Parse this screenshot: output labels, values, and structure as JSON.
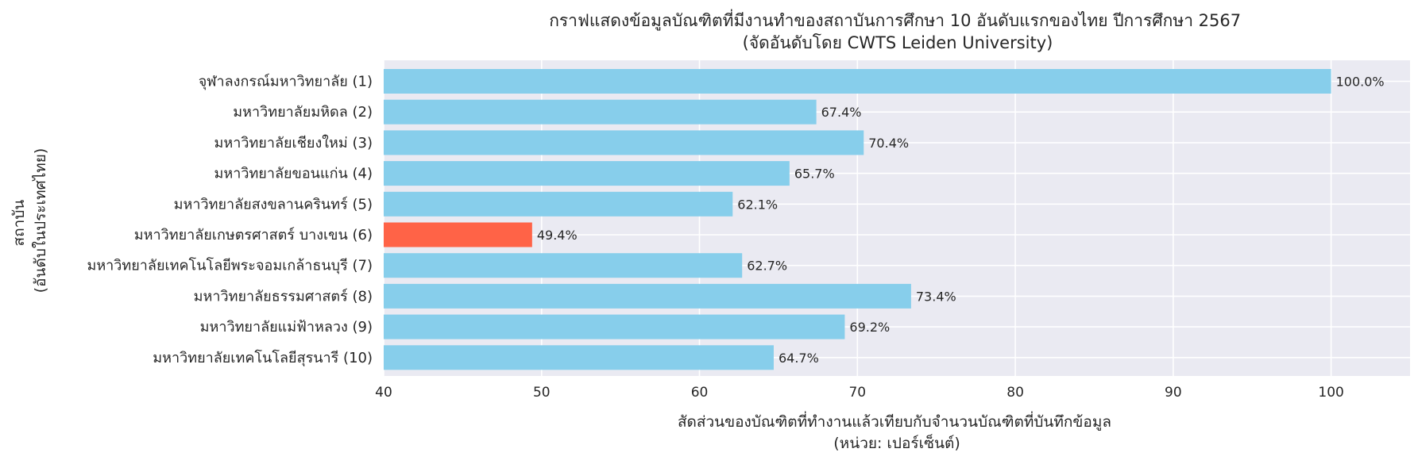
{
  "chart_data": {
    "type": "bar",
    "orientation": "horizontal",
    "title": [
      "กราฟแสดงข้อมูลบัณฑิตที่มีงานทำของสถาบันการศึกษา 10 อันดับแรกของไทย ปีการศึกษา 2567",
      "(จัดอันดับโดย CWTS Leiden University)"
    ],
    "xlabel": [
      "สัดส่วนของบัณฑิตที่ทำงานแล้วเทียบกับจำนวนบัณฑิตที่บันทึกข้อมูล",
      "(หน่วย: เปอร์เซ็นต์)"
    ],
    "ylabel": [
      "สถาบัน",
      "(อันดับในประเทศไทย)"
    ],
    "xlim": [
      40,
      105
    ],
    "xticks": [
      "40",
      "50",
      "60",
      "70",
      "80",
      "90",
      "100"
    ],
    "grid": true,
    "highlight_color": "#FF6347",
    "bar_color": "#87CEEB",
    "categories": [
      "จุฬาลงกรณ์มหาวิทยาลัย (1)",
      "มหาวิทยาลัยมหิดล (2)",
      "มหาวิทยาลัยเชียงใหม่ (3)",
      "มหาวิทยาลัยขอนแก่น (4)",
      "มหาวิทยาลัยสงขลานครินทร์ (5)",
      "มหาวิทยาลัยเกษตรศาสตร์ บางเขน (6)",
      "มหาวิทยาลัยเทคโนโลยีพระจอมเกล้าธนบุรี (7)",
      "มหาวิทยาลัยธรรมศาสตร์ (8)",
      "มหาวิทยาลัยแม่ฟ้าหลวง (9)",
      "มหาวิทยาลัยเทคโนโลยีสุรนารี (10)"
    ],
    "values": [
      100.0,
      67.4,
      70.4,
      65.7,
      62.1,
      49.4,
      62.7,
      73.4,
      69.2,
      64.7
    ],
    "data_labels": [
      "100.0%",
      "67.4%",
      "70.4%",
      "65.7%",
      "62.1%",
      "49.4%",
      "62.7%",
      "73.4%",
      "69.2%",
      "64.7%"
    ],
    "highlighted": [
      false,
      false,
      false,
      false,
      false,
      true,
      false,
      false,
      false,
      false
    ]
  }
}
